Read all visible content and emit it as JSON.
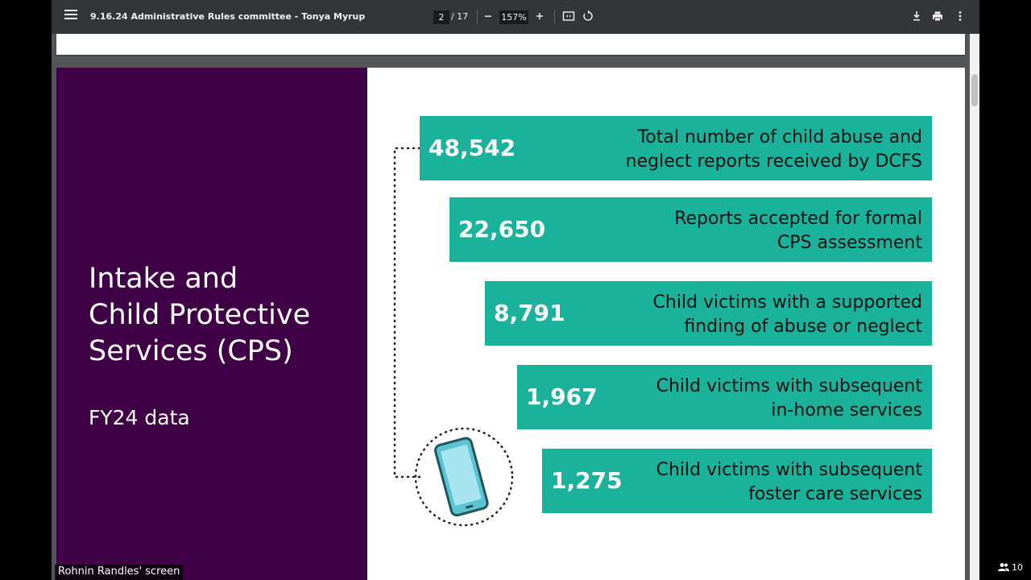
{
  "viewer": {
    "document_title": "9.16.24 Administrative Rules committee - Tonya Myrup",
    "page_current": "2",
    "page_total": "/ 17",
    "zoom": "157%"
  },
  "slide": {
    "heading": "Intake and\nChild Protective\nServices (CPS)",
    "subheading": "FY24 data",
    "stats": [
      {
        "value": "48,542",
        "label": "Total number of child abuse and\nneglect reports received by DCFS"
      },
      {
        "value": "22,650",
        "label": "Reports accepted for formal\nCPS assessment"
      },
      {
        "value": "8,791",
        "label": "Child victims with a supported\nfinding of abuse or neglect"
      },
      {
        "value": "1,967",
        "label": "Child victims with subsequent\nin-home services"
      },
      {
        "value": "1,275",
        "label": "Child victims with subsequent\nfoster care services"
      }
    ],
    "colors": {
      "panel": "#3f0046",
      "bar": "#1ab29a",
      "phone": "#5cc4ce"
    }
  },
  "meeting": {
    "screen_label": "Rohnin Randles' screen",
    "participant_count": "10"
  },
  "icons": {
    "menu": "hamburger-menu-icon",
    "zoom_out": "minus-icon",
    "zoom_in": "plus-icon",
    "fit": "fit-page-icon",
    "rotate": "rotate-icon",
    "download": "download-icon",
    "print": "print-icon",
    "more": "more-vert-icon",
    "participants": "people-icon",
    "phone": "phone-icon"
  }
}
